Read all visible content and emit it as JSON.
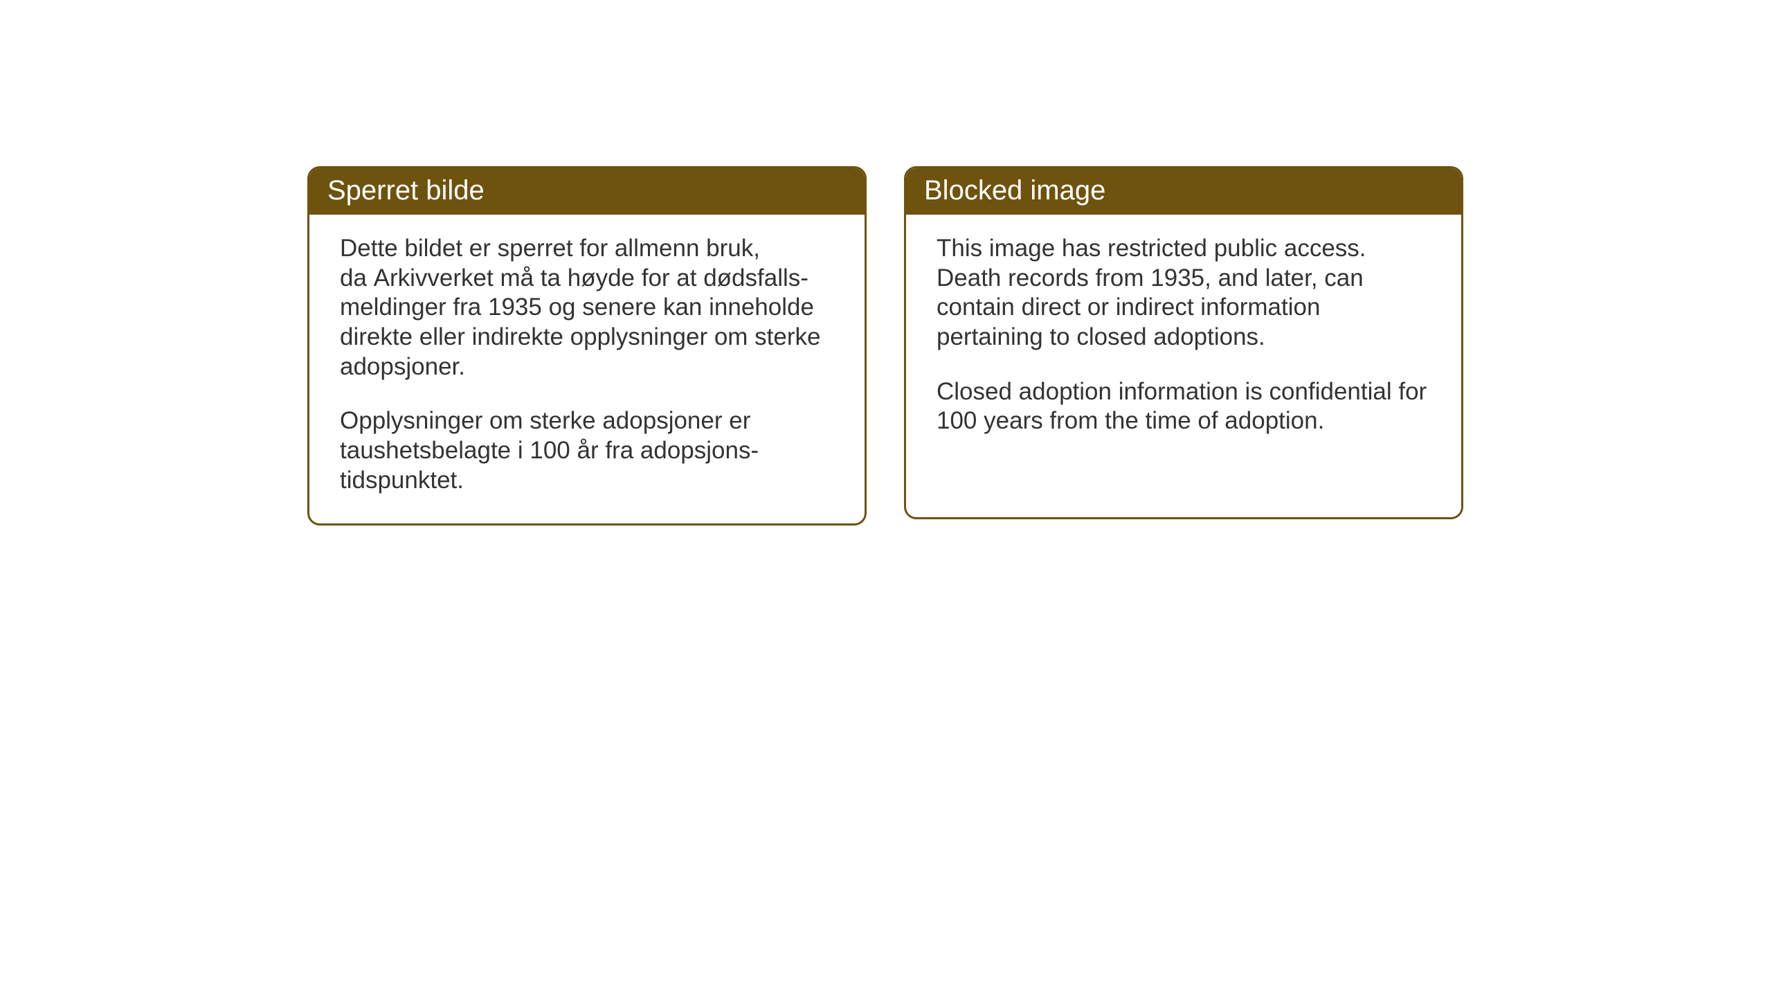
{
  "cards": {
    "norwegian": {
      "title": "Sperret bilde",
      "paragraph1": "Dette bildet er sperret for allmenn bruk, da Arkivverket må ta høyde for at dødsfalls-meldinger fra 1935 og senere kan inneholde direkte eller indirekte opplysninger om sterke adopsjoner.",
      "paragraph2": "Opplysninger om sterke adopsjoner er taushetsbelagte i 100 år fra adopsjons-tidspunktet."
    },
    "english": {
      "title": "Blocked image",
      "paragraph1": "This image has restricted public access. Death records from 1935, and later, can contain direct or indirect information pertaining to closed adoptions.",
      "paragraph2": "Closed adoption information is confidential for 100 years from the time of adoption."
    }
  },
  "styling": {
    "header_bg_color": "#6e530f",
    "header_text_color": "#ffffff",
    "border_color": "#6e530f",
    "body_text_color": "#333333",
    "background_color": "#ffffff",
    "title_fontsize": 40,
    "body_fontsize": 35,
    "border_radius": 18,
    "border_width": 3
  }
}
